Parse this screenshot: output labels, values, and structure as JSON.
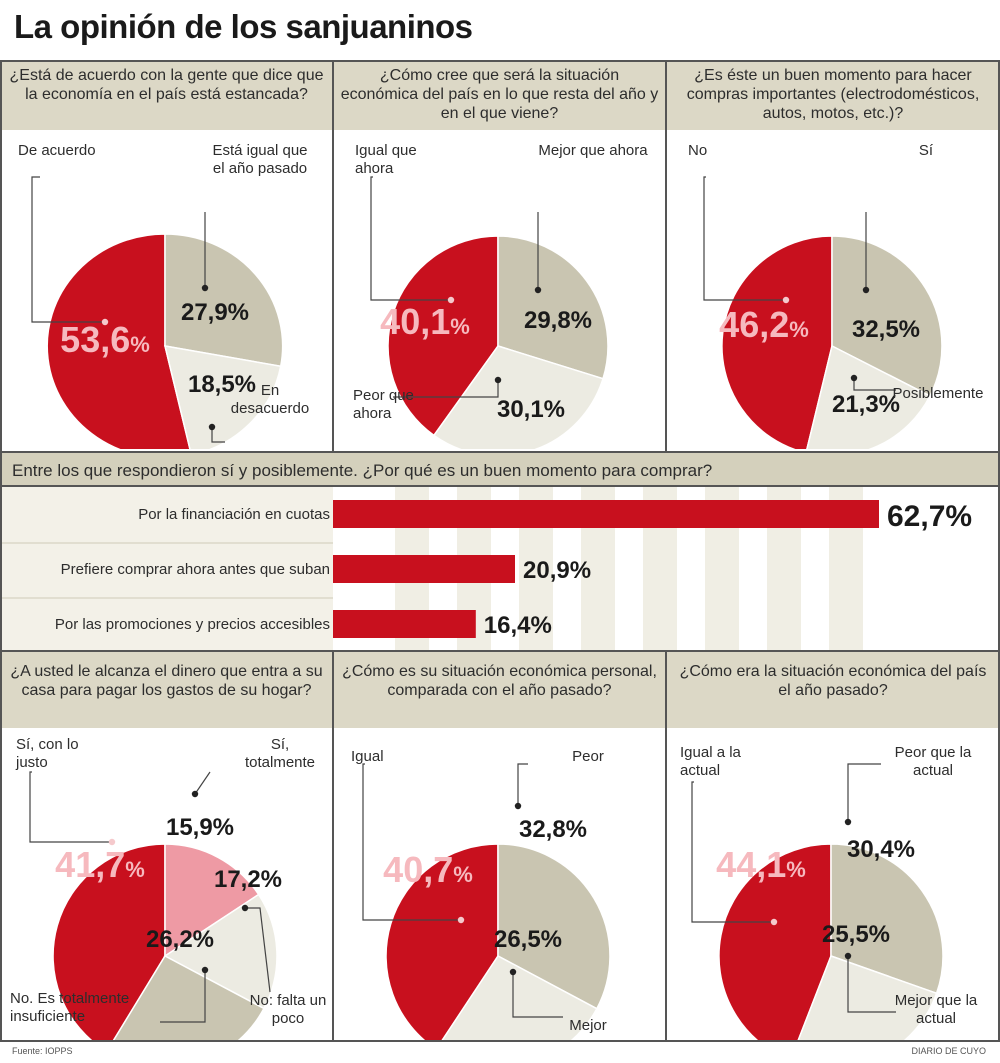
{
  "title": "La opinión de los sanjuaninos",
  "colors": {
    "red": "#c8101e",
    "beige": "#c9c5b1",
    "light": "#ecebe2",
    "pink": "#ee9aa4",
    "header": "#dcd8c6"
  },
  "chart_data": [
    {
      "type": "pie",
      "title": "¿Está de acuerdo con la gente que dice que la economía en el país está estancada?",
      "slices": [
        {
          "label": "De acuerdo",
          "value": 53.6,
          "text": "53,6",
          "unit": "%",
          "color": "#c8101e"
        },
        {
          "label": "Está igual que el año pasado",
          "value": 27.9,
          "text": "27,9%",
          "color": "#c9c5b1"
        },
        {
          "label": "En desacuerdo",
          "value": 18.5,
          "text": "18,5%",
          "color": "#ecebe2"
        }
      ]
    },
    {
      "type": "pie",
      "title": "¿Cómo cree que será la situación económica del país en lo que resta del año y en el que viene?",
      "slices": [
        {
          "label": "Igual que ahora",
          "value": 40.1,
          "text": "40,1",
          "unit": "%",
          "color": "#c8101e"
        },
        {
          "label": "Mejor que ahora",
          "value": 29.8,
          "text": "29,8%",
          "color": "#c9c5b1"
        },
        {
          "label": "Peor que ahora",
          "value": 30.1,
          "text": "30,1%",
          "color": "#ecebe2"
        }
      ]
    },
    {
      "type": "pie",
      "title": "¿Es éste un buen momento para hacer compras importantes (electrodomésticos, autos, motos, etc.)?",
      "slices": [
        {
          "label": "No",
          "value": 46.2,
          "text": "46,2",
          "unit": "%",
          "color": "#c8101e"
        },
        {
          "label": "Sí",
          "value": 32.5,
          "text": "32,5%",
          "color": "#c9c5b1"
        },
        {
          "label": "Posiblemente",
          "value": 21.3,
          "text": "21,3%",
          "color": "#ecebe2"
        }
      ]
    },
    {
      "type": "bar",
      "title": "Entre los que respondieron sí y posiblemente. ¿Por qué es un buen momento para comprar?",
      "categories": [
        "Por la financiación en cuotas",
        "Prefiere comprar ahora antes que suban",
        "Por las promociones y precios accesibles"
      ],
      "values": [
        62.7,
        20.9,
        16.4
      ],
      "value_texts": [
        "62,7%",
        "20,9%",
        "16,4%"
      ],
      "xlim": [
        0,
        62.7
      ]
    },
    {
      "type": "pie",
      "title": "¿A usted le alcanza el dinero que entra a su casa para pagar los gastos de su hogar?",
      "slices": [
        {
          "label": "Sí, con lo justo",
          "value": 41.7,
          "text": "41,7",
          "unit": "%",
          "color": "#c8101e"
        },
        {
          "label": "Sí, totalmente",
          "value": 15.9,
          "text": "15,9%",
          "color": "#ee9aa4"
        },
        {
          "label": "No: falta un poco",
          "value": 17.2,
          "text": "17,2%",
          "color": "#ecebe2"
        },
        {
          "label": "No. Es totalmente insuficiente",
          "value": 26.2,
          "text": "26,2%",
          "color": "#c9c5b1"
        }
      ]
    },
    {
      "type": "pie",
      "title": "¿Cómo es su situación económica personal, comparada con el año pasado?",
      "slices": [
        {
          "label": "Igual",
          "value": 40.7,
          "text": "40,7",
          "unit": "%",
          "color": "#c8101e"
        },
        {
          "label": "Peor",
          "value": 32.8,
          "text": "32,8%",
          "color": "#c9c5b1"
        },
        {
          "label": "Mejor",
          "value": 26.5,
          "text": "26,5%",
          "color": "#ecebe2"
        }
      ]
    },
    {
      "type": "pie",
      "title": "¿Cómo era la situación económica del país el año pasado?",
      "slices": [
        {
          "label": "Igual a la actual",
          "value": 44.1,
          "text": "44,1",
          "unit": "%",
          "color": "#c8101e"
        },
        {
          "label": "Peor que la actual",
          "value": 30.4,
          "text": "30,4%",
          "color": "#c9c5b1"
        },
        {
          "label": "Mejor que la actual",
          "value": 25.5,
          "text": "25,5%",
          "color": "#ecebe2"
        }
      ]
    }
  ],
  "source": "Fuente: IOPPS",
  "credit": "DIARIO DE CUYO"
}
